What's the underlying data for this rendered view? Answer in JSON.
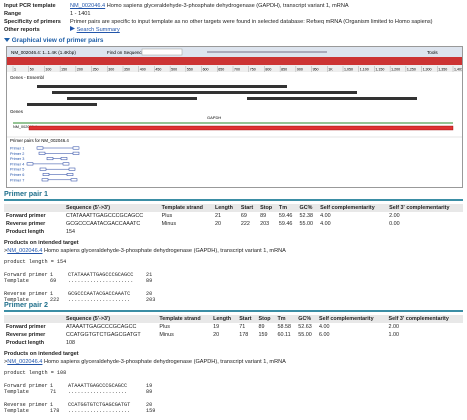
{
  "summary": {
    "rows": [
      {
        "label": "Input PCR template",
        "accession": "NM_002046.4",
        "text": "Homo sapiens glyceraldehyde-3-phosphate dehydrogenase (GAPDH), transcript variant 1, mRNA"
      },
      {
        "label": "Range",
        "text": "1 - 1401"
      },
      {
        "label": "Specificity of primers",
        "text": "Primer pairs are specific to input template as no other targets were found in selected database: Refseq mRNA (Organism limited to Homo sapiens)"
      },
      {
        "label": "Other reports",
        "link": "Search Summary"
      }
    ]
  },
  "graphic": {
    "title": "Graphical view of primer pairs",
    "toolbar": {
      "sequence": "NM_002046.4: 1..1.4K (1.4Kbp)",
      "find": "Find on Sequence:",
      "tools": "Tools"
    },
    "ruler": [
      "1",
      "50",
      "100",
      "150",
      "200",
      "250",
      "300",
      "350",
      "400",
      "450",
      "500",
      "550",
      "600",
      "650",
      "700",
      "750",
      "800",
      "850",
      "900",
      "950",
      "1K",
      "1,050",
      "1,100",
      "1,150",
      "1,200",
      "1,250",
      "1,300",
      "1,350",
      "1,401"
    ],
    "tracks": {
      "genes_ensembl": "Genes - Ensembl",
      "genes": "Genes",
      "gene": "GAPDH",
      "transcript": "NM_002046.4",
      "primers": "Primer pairs for NM_002046.4"
    },
    "primer_labels": [
      "Primer 1",
      "Primer 2",
      "Primer 3",
      "Primer 4",
      "Primer 5",
      "Primer 6",
      "Primer 7"
    ]
  },
  "pairs": [
    {
      "title": "Primer pair 1",
      "columns": [
        "Sequence (5'->3')",
        "Template strand",
        "Length",
        "Start",
        "Stop",
        "Tm",
        "GC%",
        "Self complementarity",
        "Self 3' complementarity"
      ],
      "rows": [
        [
          "Forward primer",
          "CTATAAATTGAGCCCGCAGCC",
          "Plus",
          "21",
          "69",
          "89",
          "59.46",
          "52.38",
          "4.00",
          "2.00"
        ],
        [
          "Reverse primer",
          "GCGCCCAATACGACCAAATC",
          "Minus",
          "20",
          "222",
          "203",
          "59.46",
          "55.00",
          "4.00",
          "0.00"
        ]
      ],
      "product_length": [
        "Product length",
        "154"
      ],
      "products_heading": "Products on intended target",
      "target": {
        "marker": ">",
        "accession": "NM_002046.4",
        "text": "Homo sapiens glyceraldehyde-3-phosphate dehydrogenase (GAPDH), transcript variant 1, mRNA"
      },
      "alignment": {
        "product": "product length = 154",
        "blocks": [
          [
            [
              "Forward primer",
              "1",
              "CTATAAATTGAGCCCGCAGCC",
              "21"
            ],
            [
              "Template",
              "69",
              ".....................",
              "89"
            ]
          ],
          [
            [
              "Reverse primer",
              "1",
              "GCGCCCAATACGACCAAATC",
              "20"
            ],
            [
              "Template",
              "222",
              "....................",
              "203"
            ]
          ]
        ]
      }
    },
    {
      "title": "Primer pair 2",
      "columns": [
        "Sequence (5'->3')",
        "Template strand",
        "Length",
        "Start",
        "Stop",
        "Tm",
        "GC%",
        "Self complementarity",
        "Self 3' complementarity"
      ],
      "rows": [
        [
          "Forward primer",
          "ATAAATTGAGCCCGCAGCC",
          "Plus",
          "19",
          "71",
          "89",
          "58.58",
          "52.63",
          "4.00",
          "2.00"
        ],
        [
          "Reverse primer",
          "CCATGGTGTCTGAGCGATGT",
          "Minus",
          "20",
          "178",
          "159",
          "60.11",
          "55.00",
          "6.00",
          "1.00"
        ]
      ],
      "product_length": [
        "Product length",
        "108"
      ],
      "products_heading": "Products on intended target",
      "target": {
        "marker": ">",
        "accession": "NM_002046.4",
        "text": "Homo sapiens glyceraldehyde-3-phosphate dehydrogenase (GAPDH), transcript variant 1, mRNA"
      },
      "alignment": {
        "product": "product length = 108",
        "blocks": [
          [
            [
              "Forward primer",
              "1",
              "ATAAATTGAGCCCGCAGCC",
              "19"
            ],
            [
              "Template",
              "71",
              "...................",
              "89"
            ]
          ],
          [
            [
              "Reverse primer",
              "1",
              "CCATGGTGTCTGAGCGATGT",
              "20"
            ],
            [
              "Template",
              "178",
              "....................",
              "159"
            ]
          ]
        ]
      }
    }
  ]
}
